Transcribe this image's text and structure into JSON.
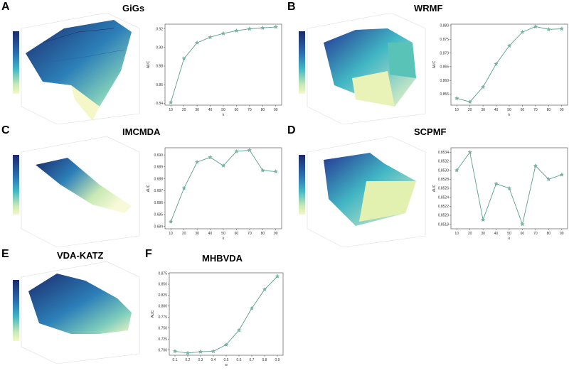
{
  "panels": [
    {
      "label": "A",
      "title": "GiGs"
    },
    {
      "label": "B",
      "title": "WRMF"
    },
    {
      "label": "C",
      "title": "IMCMDA"
    },
    {
      "label": "D",
      "title": "SCPMF"
    },
    {
      "label": "E",
      "title": "VDA-KATZ"
    },
    {
      "label": "F",
      "title": "MHBVDA"
    }
  ],
  "colors": {
    "line": "#5a9e8f",
    "marker": "#7fb5a5",
    "surface_dark": "#1b2a6b",
    "surface_mid": "#2a8fb8",
    "surface_light": "#f5f7c8"
  },
  "chart_data": [
    {
      "id": "A",
      "type": "line",
      "title": "GiGs",
      "xlabel": "k",
      "ylabel": "AUC",
      "x": [
        10,
        20,
        30,
        40,
        50,
        60,
        70,
        80,
        90
      ],
      "values": [
        0.841,
        0.888,
        0.905,
        0.911,
        0.915,
        0.918,
        0.92,
        0.921,
        0.922
      ],
      "yticks": [
        "0.84",
        "0.86",
        "0.88",
        "0.90",
        "0.92"
      ],
      "ylim": [
        0.838,
        0.925
      ]
    },
    {
      "id": "B",
      "type": "line",
      "title": "WRMF",
      "xlabel": "k",
      "ylabel": "AUC",
      "x": [
        10,
        20,
        30,
        40,
        50,
        60,
        70,
        80,
        90
      ],
      "values": [
        0.8535,
        0.8522,
        0.8576,
        0.866,
        0.8726,
        0.8776,
        0.8796,
        0.8786,
        0.8788
      ],
      "yticks": [
        "0.855",
        "0.860",
        "0.865",
        "0.870",
        "0.875",
        "0.880"
      ],
      "ylim": [
        0.851,
        0.8805
      ]
    },
    {
      "id": "C",
      "type": "line",
      "title": "IMCMDA",
      "xlabel": "k",
      "ylabel": "AUC",
      "x": [
        10,
        20,
        30,
        40,
        50,
        60,
        70,
        80,
        90
      ],
      "values": [
        0.6844,
        0.6872,
        0.6894,
        0.6898,
        0.6891,
        0.6903,
        0.6904,
        0.6887,
        0.6886
      ],
      "yticks": [
        "0.684",
        "0.685",
        "0.686",
        "0.687",
        "0.688",
        "0.689",
        "0.690"
      ],
      "ylim": [
        0.6838,
        0.6906
      ]
    },
    {
      "id": "D",
      "type": "line",
      "title": "SCPMF",
      "xlabel": "k",
      "ylabel": "AUC",
      "x": [
        10,
        20,
        30,
        40,
        50,
        60,
        70,
        80,
        90
      ],
      "values": [
        0.853,
        0.8534,
        0.8519,
        0.8527,
        0.8526,
        0.8518,
        0.8531,
        0.8528,
        0.8529
      ],
      "yticks": [
        "0.8518",
        "0.8520",
        "0.8522",
        "0.8524",
        "0.8526",
        "0.8528",
        "0.8530",
        "0.8532",
        "0.8534"
      ],
      "ylim": [
        0.8517,
        0.8535
      ]
    },
    {
      "id": "F",
      "type": "line",
      "title": "MHBVDA",
      "xlabel": "w",
      "ylabel": "AUC",
      "x": [
        0.1,
        0.2,
        0.3,
        0.4,
        0.5,
        0.6,
        0.7,
        0.8,
        0.9
      ],
      "values": [
        0.697,
        0.693,
        0.696,
        0.697,
        0.712,
        0.745,
        0.795,
        0.838,
        0.868
      ],
      "yticks": [
        "0.700",
        "0.725",
        "0.750",
        "0.775",
        "0.800",
        "0.825",
        "0.850",
        "0.875"
      ],
      "ylim": [
        0.688,
        0.876
      ]
    }
  ]
}
